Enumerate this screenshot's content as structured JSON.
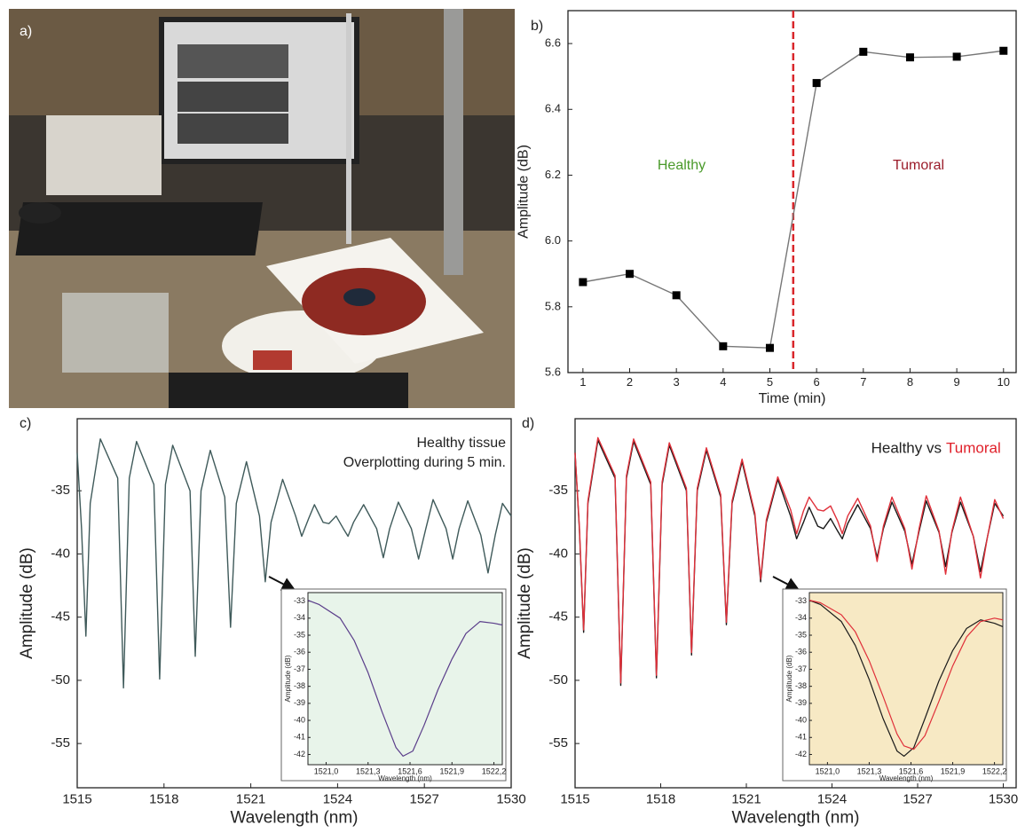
{
  "photo": {
    "panel_label": "a)"
  },
  "chart_data": [
    {
      "type": "line",
      "panel_label": "b)",
      "xlabel": "Time (min)",
      "ylabel": "Amplitude (dB)",
      "x": [
        1,
        2,
        3,
        4,
        5,
        6,
        7,
        8,
        9,
        10
      ],
      "series": [
        {
          "color": "#000000",
          "line_color": "#777777",
          "marker": "square",
          "values": [
            5.875,
            5.9,
            5.835,
            5.68,
            5.675,
            6.48,
            6.575,
            6.558,
            6.56,
            6.578
          ]
        }
      ],
      "xlim": [
        0.68,
        10.27
      ],
      "ylim": [
        5.6,
        6.7
      ],
      "xticks": [
        1,
        2,
        3,
        4,
        5,
        6,
        7,
        8,
        9,
        10
      ],
      "yticks": [
        5.6,
        5.8,
        {
          "value": 6,
          "label": "6.0"
        },
        6.2,
        6.4,
        6.6
      ],
      "vline": {
        "x": 5.5,
        "color": "#d9262b"
      },
      "annotations": [
        {
          "text": "Healthy",
          "color": "#4a9a2a"
        },
        {
          "text": "Tumoral",
          "color": "#9b1c2a"
        }
      ]
    },
    {
      "type": "line",
      "panel_label": "c)",
      "xlabel": "Wavelength (nm)",
      "ylabel": "Amplitude (dB)",
      "x": [
        1515.0,
        1515.15,
        1515.3,
        1515.45,
        1515.8,
        1516.4,
        1516.6,
        1516.8,
        1517.05,
        1517.65,
        1517.85,
        1518.05,
        1518.3,
        1518.9,
        1519.08,
        1519.28,
        1519.6,
        1520.1,
        1520.3,
        1520.5,
        1520.85,
        1521.3,
        1521.5,
        1521.7,
        1522.1,
        1522.55,
        1522.76,
        1523.0,
        1523.2,
        1523.5,
        1523.7,
        1523.95,
        1524.2,
        1524.36,
        1524.55,
        1524.9,
        1525.35,
        1525.58,
        1525.8,
        1526.1,
        1526.55,
        1526.8,
        1527.05,
        1527.3,
        1527.75,
        1527.98,
        1528.2,
        1528.5,
        1528.95,
        1529.2,
        1529.45,
        1529.7,
        1530.0
      ],
      "series": [
        {
          "color": "#3f5a5a",
          "values": [
            -32.0,
            -38.0,
            -46.5,
            -36.0,
            -30.9,
            -34.0,
            -50.6,
            -34.0,
            -31.1,
            -34.5,
            -49.9,
            -34.5,
            -31.4,
            -35.0,
            -48.1,
            -35.0,
            -31.8,
            -35.5,
            -45.8,
            -36.0,
            -32.7,
            -37.0,
            -42.2,
            -37.5,
            -34.1,
            -37.0,
            -38.6,
            -37.2,
            -36.1,
            -37.5,
            -37.6,
            -37.0,
            -38.0,
            -38.6,
            -37.5,
            -36.1,
            -38.0,
            -40.3,
            -38.0,
            -35.9,
            -38.0,
            -40.4,
            -38.0,
            -35.7,
            -38.0,
            -40.4,
            -38.0,
            -35.8,
            -38.5,
            -41.5,
            -38.5,
            -36.0,
            -37.0
          ]
        }
      ],
      "xlim": [
        1515,
        1530
      ],
      "ylim": [
        -58.5,
        -29.3
      ],
      "xticks": [
        1515,
        1518,
        1521,
        1524,
        1527,
        1530
      ],
      "yticks": [
        -35,
        -40,
        -45,
        -50,
        -55
      ],
      "annotations": [
        {
          "text": "Healthy tissue",
          "color": "#222222"
        },
        {
          "text": "Overplotting during 5 min.",
          "color": "#222222"
        }
      ]
    },
    {
      "type": "line",
      "xlabel": "Wavelength (nm)",
      "ylabel": "Amplitude (dB)",
      "background": "#e8f4ea",
      "x": [
        1520.87,
        1520.95,
        1521.1,
        1521.2,
        1521.3,
        1521.4,
        1521.5,
        1521.55,
        1521.62,
        1521.7,
        1521.8,
        1521.9,
        1522.0,
        1522.1,
        1522.2,
        1522.26
      ],
      "series": [
        {
          "color": "#5a3d8a",
          "values": [
            -32.95,
            -33.2,
            -34.0,
            -35.3,
            -37.2,
            -39.5,
            -41.6,
            -42.1,
            -41.8,
            -40.3,
            -38.2,
            -36.4,
            -34.9,
            -34.2,
            -34.3,
            -34.4
          ]
        }
      ],
      "xlim": [
        1520.87,
        1522.26
      ],
      "ylim": [
        -42.6,
        -32.5
      ],
      "xticks": [
        {
          "value": 1521.0,
          "label": "1521,0"
        },
        {
          "value": 1521.3,
          "label": "1521,3"
        },
        {
          "value": 1521.6,
          "label": "1521,6"
        },
        {
          "value": 1521.9,
          "label": "1521,9"
        },
        {
          "value": 1522.2,
          "label": "1522,2"
        }
      ],
      "yticks": [
        -33,
        -34,
        -35,
        -36,
        -37,
        -38,
        -39,
        -40,
        -41,
        -42
      ]
    },
    {
      "type": "line",
      "panel_label": "d)",
      "xlabel": "Wavelength (nm)",
      "ylabel": "Amplitude (dB)",
      "x": [
        1515.0,
        1515.15,
        1515.3,
        1515.45,
        1515.8,
        1516.4,
        1516.6,
        1516.8,
        1517.05,
        1517.65,
        1517.85,
        1518.05,
        1518.3,
        1518.9,
        1519.08,
        1519.28,
        1519.6,
        1520.1,
        1520.3,
        1520.5,
        1520.85,
        1521.3,
        1521.5,
        1521.7,
        1522.1,
        1522.55,
        1522.76,
        1523.0,
        1523.2,
        1523.5,
        1523.7,
        1523.95,
        1524.2,
        1524.36,
        1524.55,
        1524.9,
        1525.35,
        1525.58,
        1525.8,
        1526.1,
        1526.55,
        1526.8,
        1527.05,
        1527.3,
        1527.75,
        1527.98,
        1528.2,
        1528.5,
        1528.95,
        1529.2,
        1529.45,
        1529.7,
        1530.0
      ],
      "series": [
        {
          "color": "#1a1a1a",
          "values": [
            -32.0,
            -38.0,
            -46.2,
            -36.0,
            -31.0,
            -34.0,
            -50.4,
            -34.0,
            -31.1,
            -34.5,
            -49.8,
            -34.5,
            -31.4,
            -35.0,
            -48.0,
            -35.0,
            -31.8,
            -35.5,
            -45.6,
            -36.0,
            -32.7,
            -37.0,
            -42.2,
            -37.5,
            -34.1,
            -37.0,
            -38.8,
            -37.5,
            -36.3,
            -37.8,
            -38.0,
            -37.2,
            -38.2,
            -38.8,
            -37.6,
            -36.1,
            -38.0,
            -40.3,
            -38.0,
            -35.9,
            -38.2,
            -40.8,
            -38.2,
            -35.8,
            -38.3,
            -41.0,
            -38.3,
            -35.9,
            -38.6,
            -41.4,
            -38.6,
            -36.0,
            -37.0
          ]
        },
        {
          "color": "#e0303a",
          "values": [
            -32.0,
            -37.8,
            -46.0,
            -35.8,
            -30.8,
            -33.8,
            -50.2,
            -33.8,
            -30.9,
            -34.3,
            -49.6,
            -34.3,
            -31.2,
            -34.8,
            -47.8,
            -34.8,
            -31.6,
            -35.3,
            -45.4,
            -35.8,
            -32.5,
            -36.8,
            -42.0,
            -37.3,
            -33.9,
            -36.5,
            -38.4,
            -36.6,
            -35.5,
            -36.5,
            -36.6,
            -36.2,
            -37.4,
            -38.4,
            -37.0,
            -35.6,
            -37.8,
            -40.6,
            -37.8,
            -35.5,
            -38.0,
            -41.2,
            -38.0,
            -35.4,
            -38.2,
            -41.6,
            -38.2,
            -35.5,
            -38.6,
            -41.9,
            -38.6,
            -35.7,
            -37.2
          ]
        }
      ],
      "xlim": [
        1515,
        1530.45
      ],
      "ylim": [
        -58.5,
        -29.3
      ],
      "xticks": [
        1515,
        1518,
        1521,
        1524,
        1527,
        1530
      ],
      "yticks": [
        -35,
        -40,
        -45,
        -50,
        -55
      ],
      "annotations": [
        {
          "text": "Healthy vs",
          "color": "#222222"
        },
        {
          "text": "Tumoral",
          "color": "#e0202a"
        }
      ]
    },
    {
      "type": "line",
      "xlabel": "Wavelength (nm)",
      "ylabel": "Amplitude (dB)",
      "background": "#f7e9c4",
      "x": [
        1520.87,
        1520.95,
        1521.1,
        1521.2,
        1521.3,
        1521.4,
        1521.5,
        1521.55,
        1521.62,
        1521.7,
        1521.8,
        1521.9,
        1522.0,
        1522.1,
        1522.2,
        1522.26
      ],
      "series": [
        {
          "color": "#1a1a1a",
          "values": [
            -32.95,
            -33.2,
            -34.2,
            -35.6,
            -37.6,
            -39.9,
            -41.8,
            -42.1,
            -41.6,
            -39.9,
            -37.7,
            -35.9,
            -34.6,
            -34.1,
            -34.3,
            -34.5
          ]
        },
        {
          "color": "#e0303a",
          "values": [
            -32.95,
            -33.1,
            -33.8,
            -34.8,
            -36.5,
            -38.6,
            -40.8,
            -41.5,
            -41.7,
            -40.9,
            -38.9,
            -36.8,
            -35.1,
            -34.2,
            -34.0,
            -34.1
          ]
        }
      ],
      "xlim": [
        1520.87,
        1522.26
      ],
      "ylim": [
        -42.6,
        -32.5
      ],
      "xticks": [
        {
          "value": 1521.0,
          "label": "1521,0"
        },
        {
          "value": 1521.3,
          "label": "1521,3"
        },
        {
          "value": 1521.6,
          "label": "1521,6"
        },
        {
          "value": 1521.9,
          "label": "1521,9"
        },
        {
          "value": 1522.2,
          "label": "1522,2"
        }
      ],
      "yticks": [
        -33,
        -34,
        -35,
        -36,
        -37,
        -38,
        -39,
        -40,
        -41,
        -42
      ]
    }
  ]
}
